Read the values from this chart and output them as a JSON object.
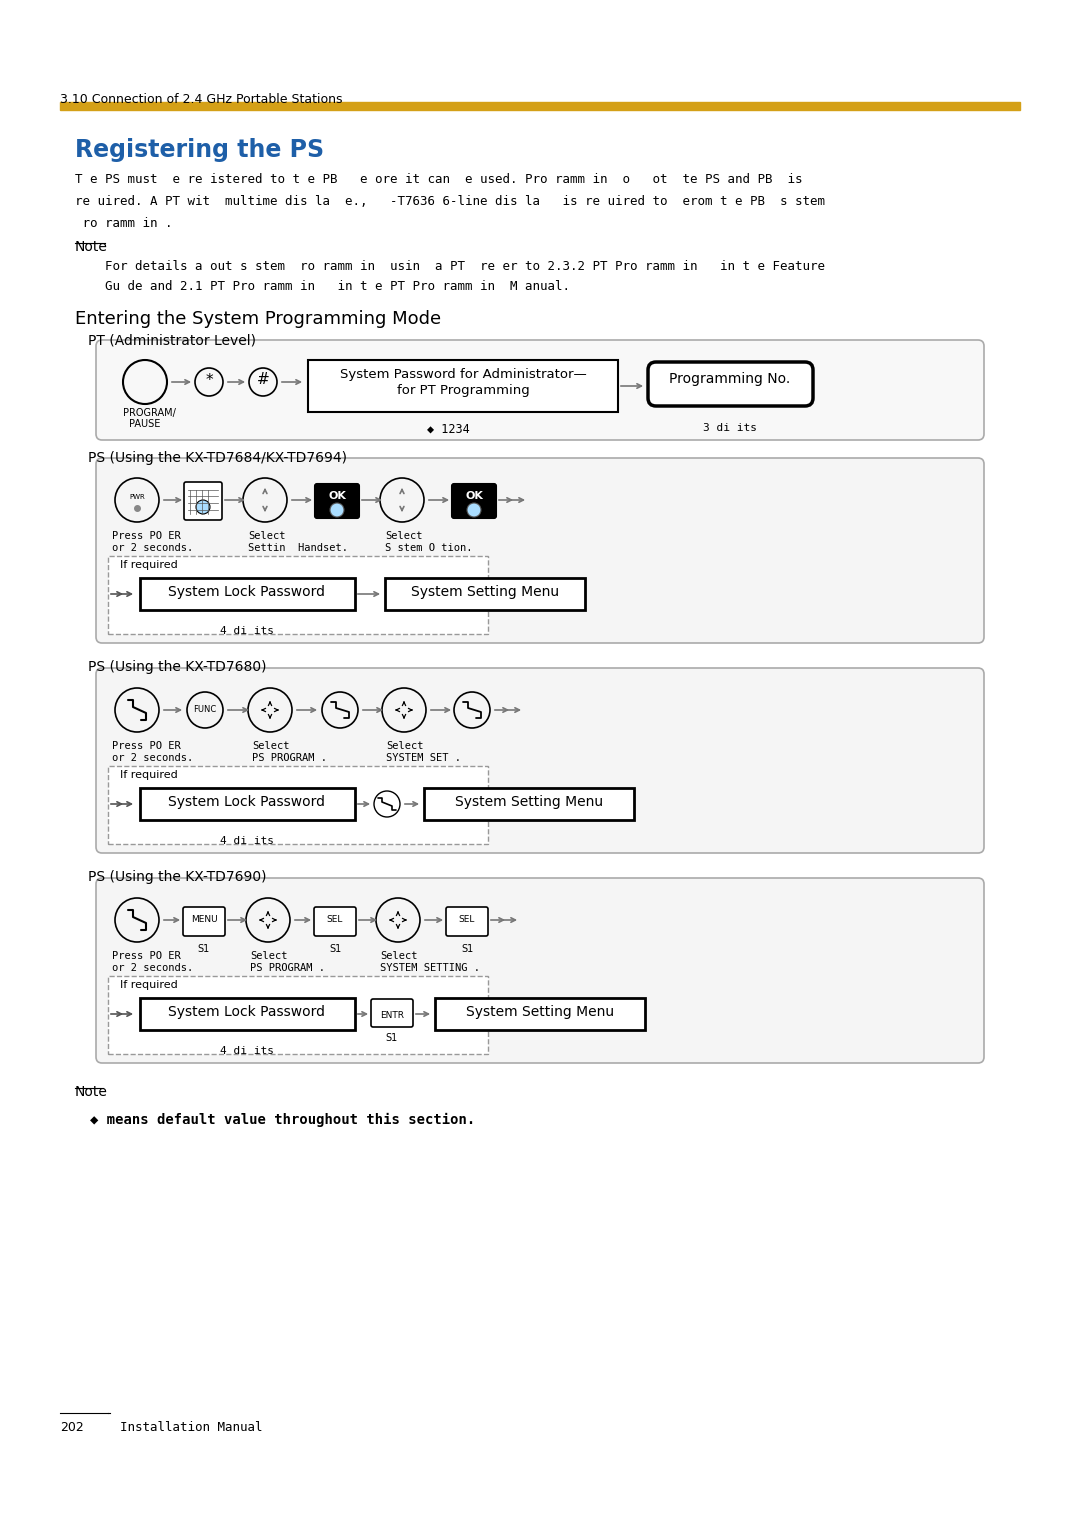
{
  "page_bg": "#ffffff",
  "section_header": "3.10 Connection of 2.4 GHz Portable Stations",
  "gold_line_color": "#d4a017",
  "title": "Registering the PS",
  "title_color": "#1e5fa8",
  "note_label": "Note",
  "section2": "Entering the System Programming Mode",
  "sub1": "PT (Administrator Level)",
  "sub2": "PS (Using the KX-TD7684/KX-TD7694)",
  "sub3": "PS (Using the KX-TD7680)",
  "sub4": "PS (Using the KX-TD7690)",
  "note2_label": "Note",
  "note2_text": "◆ means default value throughout this section.",
  "page_num": "202",
  "page_label": "Installation Manual"
}
